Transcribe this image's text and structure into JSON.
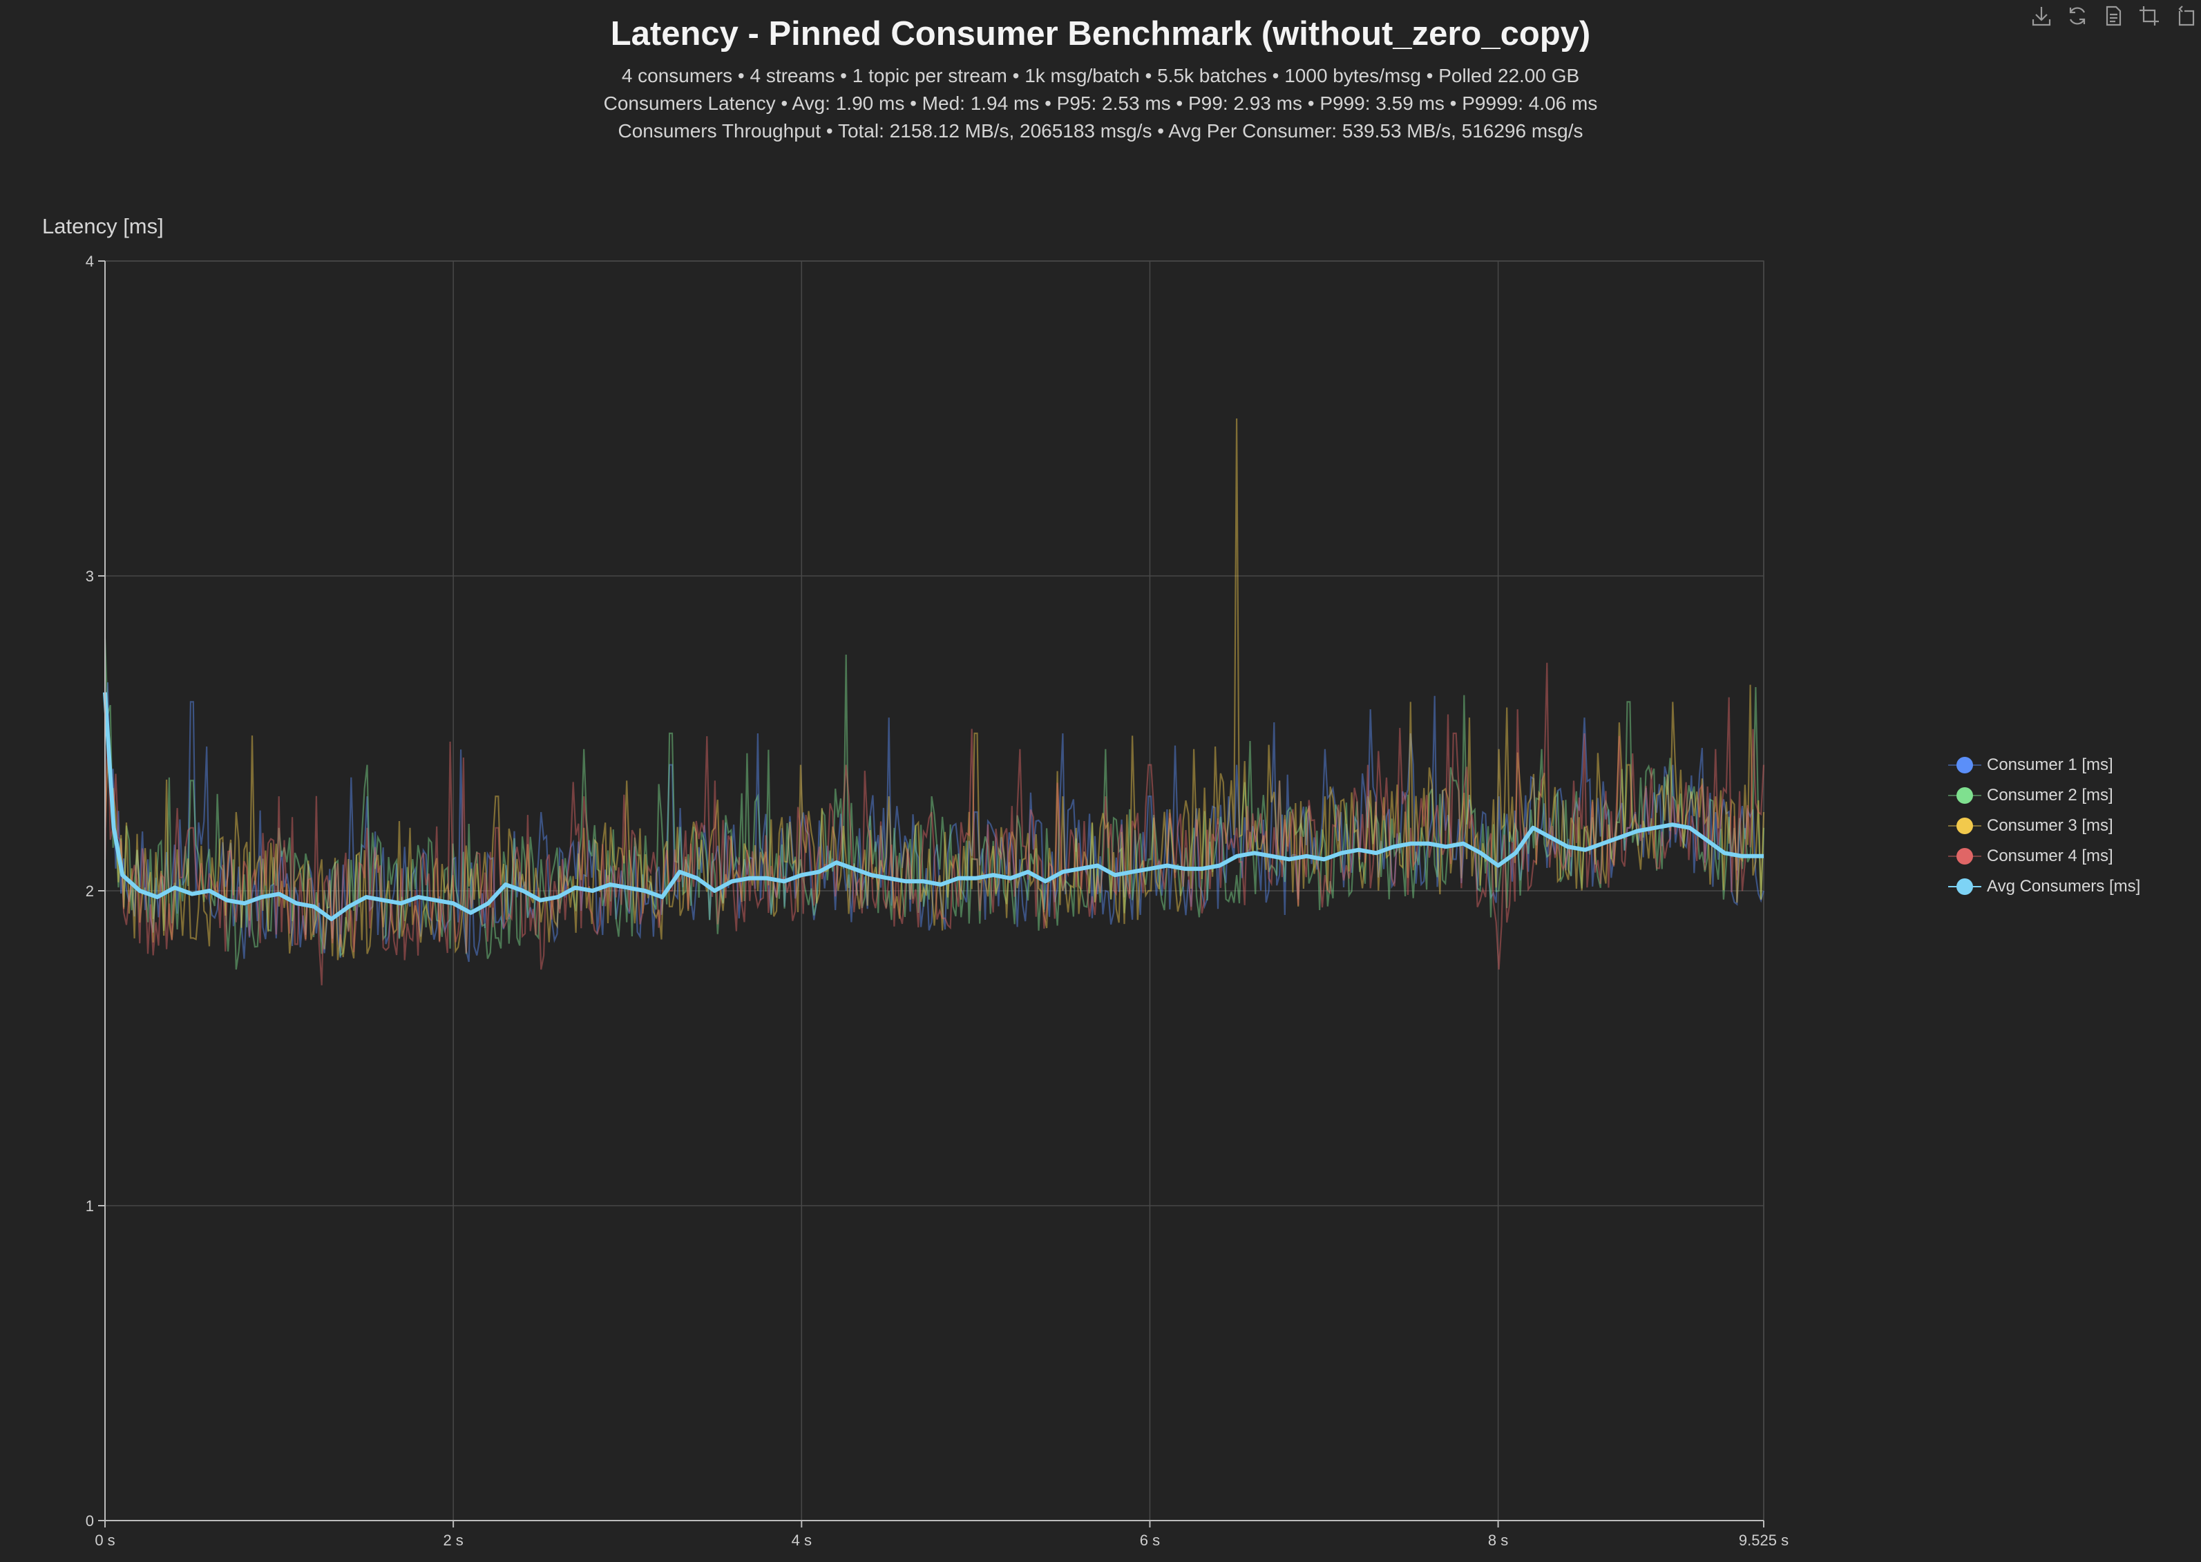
{
  "title": "Latency - Pinned Consumer Benchmark (without_zero_copy)",
  "subtitle_lines": [
    "4 consumers  •  4 streams  •  1 topic per stream  •  1k msg/batch  •  5.5k batches  •  1000 bytes/msg  •  Polled 22.00 GB",
    "Consumers Latency  •  Avg: 1.90 ms  •  Med: 1.94 ms  •  P95: 2.53 ms  •  P99: 2.93 ms  •  P999: 3.59 ms  •  P9999: 4.06 ms",
    "Consumers Throughput  •  Total: 2158.12 MB/s, 2065183 msg/s  •  Avg Per Consumer: 539.53 MB/s, 516296 msg/s"
  ],
  "toolbox": [
    {
      "name": "save-image-icon"
    },
    {
      "name": "restore-icon"
    },
    {
      "name": "data-view-icon"
    },
    {
      "name": "zoom-icon"
    },
    {
      "name": "zoom-reset-icon"
    }
  ],
  "chart_data": {
    "type": "line",
    "xlabel": "",
    "ylabel": "Latency [ms]",
    "xlim": [
      0,
      9.525
    ],
    "ylim": [
      0,
      4
    ],
    "x_ticks": [
      0,
      2,
      4,
      6,
      8,
      9.525
    ],
    "x_tick_labels": [
      "0 s",
      "2 s",
      "4 s",
      "6 s",
      "8 s",
      "9.525 s"
    ],
    "y_ticks": [
      0,
      1,
      2,
      3,
      4
    ],
    "y_tick_labels": [
      "0",
      "1",
      "2",
      "3",
      "4"
    ],
    "grid": true,
    "legend_position": "right",
    "noise_series_note": "",
    "series": [
      {
        "name": "Consumer 1 [ms]",
        "color": "#5b8ff9",
        "x": [
          0,
          0.25,
          0.5,
          0.75,
          1,
          1.25,
          1.5,
          1.75,
          2,
          2.25,
          2.5,
          2.75,
          3,
          3.25,
          3.5,
          3.75,
          4,
          4.25,
          4.5,
          4.75,
          5,
          5.25,
          5.5,
          5.75,
          6,
          6.25,
          6.5,
          6.75,
          7,
          7.25,
          7.5,
          7.75,
          8,
          8.25,
          8.5,
          8.75,
          9,
          9.25,
          9.525
        ],
        "values": [
          2.55,
          2.1,
          2.6,
          1.95,
          2.05,
          1.85,
          2.3,
          1.95,
          2.1,
          1.9,
          2.25,
          2.05,
          1.95,
          2.4,
          2.1,
          2.5,
          2.2,
          2.0,
          2.55,
          1.9,
          2.25,
          2.1,
          2.5,
          2.0,
          2.3,
          2.15,
          2.4,
          2.05,
          2.45,
          2.2,
          2.5,
          2.1,
          2.3,
          2.2,
          2.55,
          2.2,
          2.4,
          2.25,
          2.0
        ]
      },
      {
        "name": "Consumer 2 [ms]",
        "color": "#7fe08f",
        "x": [
          0,
          0.25,
          0.5,
          0.75,
          1,
          1.25,
          1.5,
          1.75,
          2,
          2.25,
          2.5,
          2.75,
          3,
          3.25,
          3.5,
          3.75,
          4,
          4.25,
          4.5,
          4.75,
          5,
          5.25,
          5.5,
          5.75,
          6,
          6.25,
          6.5,
          6.75,
          7,
          7.25,
          7.5,
          7.75,
          8,
          8.25,
          8.5,
          8.75,
          9,
          9.25,
          9.525
        ],
        "values": [
          2.8,
          1.9,
          2.35,
          1.75,
          2.2,
          1.8,
          2.4,
          2.0,
          2.15,
          1.85,
          2.1,
          2.45,
          1.9,
          2.5,
          2.05,
          2.3,
          2.1,
          2.75,
          2.0,
          2.3,
          2.1,
          2.2,
          2.0,
          2.45,
          2.1,
          2.2,
          2.05,
          2.35,
          2.15,
          2.3,
          2.1,
          2.35,
          2.0,
          2.45,
          2.2,
          2.6,
          2.3,
          2.1,
          2.2
        ]
      },
      {
        "name": "Consumer 3 [ms]",
        "color": "#f2c94c",
        "x": [
          0,
          0.25,
          0.5,
          0.75,
          1,
          1.25,
          1.5,
          1.75,
          2,
          2.25,
          2.5,
          2.75,
          3,
          3.25,
          3.5,
          3.75,
          4,
          4.25,
          4.5,
          4.75,
          5,
          5.25,
          5.5,
          5.75,
          6,
          6.25,
          6.5,
          6.75,
          7,
          7.25,
          7.5,
          7.75,
          8,
          8.25,
          8.5,
          8.75,
          9,
          9.25,
          9.525
        ],
        "values": [
          2.2,
          2.0,
          1.85,
          2.25,
          1.95,
          2.1,
          1.8,
          2.2,
          2.05,
          2.3,
          1.9,
          2.2,
          2.35,
          1.95,
          2.2,
          2.0,
          2.4,
          2.1,
          2.3,
          2.0,
          2.5,
          2.05,
          2.3,
          2.2,
          2.0,
          2.45,
          3.5,
          2.1,
          2.3,
          2.2,
          2.6,
          2.15,
          2.45,
          2.3,
          2.2,
          2.4,
          2.6,
          2.3,
          2.25
        ]
      },
      {
        "name": "Consumer 4 [ms]",
        "color": "#e06666",
        "x": [
          0,
          0.25,
          0.5,
          0.75,
          1,
          1.25,
          1.5,
          1.75,
          2,
          2.25,
          2.5,
          2.75,
          3,
          3.25,
          3.5,
          3.75,
          4,
          4.25,
          4.5,
          4.75,
          5,
          5.25,
          5.5,
          5.75,
          6,
          6.25,
          6.5,
          6.75,
          7,
          7.25,
          7.5,
          7.75,
          8,
          8.25,
          8.5,
          8.75,
          9,
          9.25,
          9.525
        ],
        "values": [
          2.1,
          1.8,
          2.2,
          1.9,
          2.3,
          1.7,
          2.2,
          1.85,
          2.05,
          2.2,
          1.75,
          2.3,
          2.1,
          2.0,
          2.35,
          1.95,
          2.2,
          2.4,
          2.05,
          2.25,
          2.1,
          2.45,
          2.0,
          2.3,
          2.4,
          2.1,
          2.2,
          2.35,
          2.05,
          2.4,
          2.2,
          2.5,
          1.75,
          2.35,
          2.5,
          2.2,
          2.3,
          2.45,
          2.4
        ]
      },
      {
        "name": "Avg Consumers [ms]",
        "color": "#7dd3f5",
        "x": [
          0,
          0.05,
          0.1,
          0.2,
          0.3,
          0.4,
          0.5,
          0.6,
          0.7,
          0.8,
          0.9,
          1.0,
          1.1,
          1.2,
          1.3,
          1.4,
          1.5,
          1.6,
          1.7,
          1.8,
          1.9,
          2.0,
          2.1,
          2.2,
          2.3,
          2.4,
          2.5,
          2.6,
          2.7,
          2.8,
          2.9,
          3.0,
          3.1,
          3.2,
          3.3,
          3.4,
          3.5,
          3.6,
          3.7,
          3.8,
          3.9,
          4.0,
          4.1,
          4.2,
          4.3,
          4.4,
          4.5,
          4.6,
          4.7,
          4.8,
          4.9,
          5.0,
          5.1,
          5.2,
          5.3,
          5.4,
          5.5,
          5.6,
          5.7,
          5.8,
          5.9,
          6.0,
          6.1,
          6.2,
          6.3,
          6.4,
          6.5,
          6.6,
          6.7,
          6.8,
          6.9,
          7.0,
          7.1,
          7.2,
          7.3,
          7.4,
          7.5,
          7.6,
          7.7,
          7.8,
          7.9,
          8.0,
          8.1,
          8.2,
          8.3,
          8.4,
          8.5,
          8.6,
          8.7,
          8.8,
          8.9,
          9.0,
          9.1,
          9.2,
          9.3,
          9.4,
          9.525
        ],
        "values": [
          2.63,
          2.2,
          2.05,
          2.0,
          1.98,
          2.01,
          1.99,
          2.0,
          1.97,
          1.96,
          1.98,
          1.99,
          1.96,
          1.95,
          1.91,
          1.95,
          1.98,
          1.97,
          1.96,
          1.98,
          1.97,
          1.96,
          1.93,
          1.96,
          2.02,
          2.0,
          1.97,
          1.98,
          2.01,
          2.0,
          2.02,
          2.01,
          2.0,
          1.98,
          2.06,
          2.04,
          2.0,
          2.03,
          2.04,
          2.04,
          2.03,
          2.05,
          2.06,
          2.09,
          2.07,
          2.05,
          2.04,
          2.03,
          2.03,
          2.02,
          2.04,
          2.04,
          2.05,
          2.04,
          2.06,
          2.03,
          2.06,
          2.07,
          2.08,
          2.05,
          2.06,
          2.07,
          2.08,
          2.07,
          2.07,
          2.08,
          2.11,
          2.12,
          2.11,
          2.1,
          2.11,
          2.1,
          2.12,
          2.13,
          2.12,
          2.14,
          2.15,
          2.15,
          2.14,
          2.15,
          2.12,
          2.08,
          2.12,
          2.2,
          2.17,
          2.14,
          2.13,
          2.15,
          2.17,
          2.19,
          2.2,
          2.21,
          2.2,
          2.16,
          2.12,
          2.11,
          2.11
        ]
      }
    ]
  }
}
